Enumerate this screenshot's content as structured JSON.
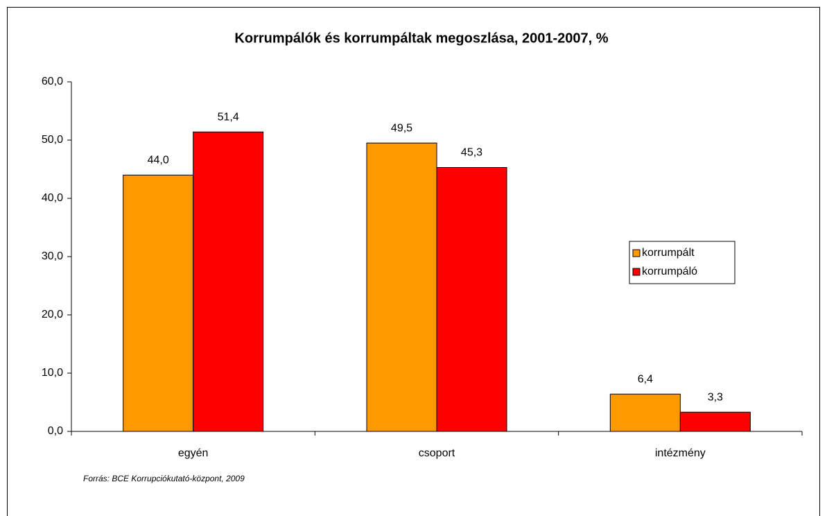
{
  "chart_data": {
    "type": "bar",
    "title": "Korrumpálók és korrumpáltak megoszlása, 2001-2007, %",
    "categories": [
      "egyén",
      "csoport",
      "intézmény"
    ],
    "series": [
      {
        "name": "korrumpált",
        "color": "#ff9900",
        "values": [
          44.0,
          49.5,
          6.4
        ],
        "value_labels": [
          "44,0",
          "49,5",
          "6,4"
        ]
      },
      {
        "name": "korrumpáló",
        "color": "#ff0000",
        "values": [
          51.4,
          45.3,
          3.3
        ],
        "value_labels": [
          "51,4",
          "45,3",
          "3,3"
        ]
      }
    ],
    "ylim": [
      0,
      60
    ],
    "yticks": [
      {
        "value": 0,
        "label": "0,0"
      },
      {
        "value": 10,
        "label": "10,0"
      },
      {
        "value": 20,
        "label": "20,0"
      },
      {
        "value": 30,
        "label": "30,0"
      },
      {
        "value": 40,
        "label": "40,0"
      },
      {
        "value": 50,
        "label": "50,0"
      },
      {
        "value": 60,
        "label": "60,0"
      }
    ],
    "grid": false,
    "legend": "right",
    "note": "Forrás: BCE Korrupciókutató-központ, 2009"
  }
}
